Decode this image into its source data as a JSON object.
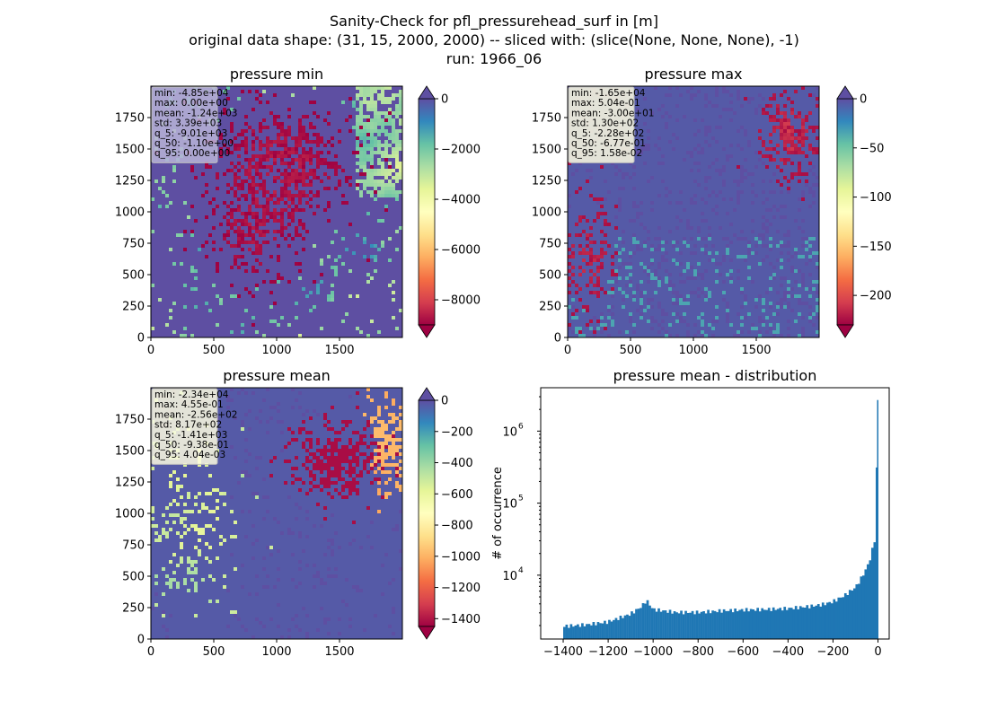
{
  "suptitle": {
    "line1": "Sanity-Check for pfl_pressurehead_surf in [m]",
    "line2": "original data shape: (31, 15, 2000, 2000) -- sliced with: (slice(None, None, None), -1)",
    "line3": "run: 1966_06"
  },
  "panels": [
    {
      "title": "pressure min",
      "cmap": "Spectral",
      "color_range": [
        -9000,
        0
      ],
      "colorbar_ticks": [
        "0",
        "−2000",
        "−4000",
        "−6000",
        "−8000"
      ],
      "colorbar_tick_values": [
        0,
        -2000,
        -4000,
        -6000,
        -8000
      ],
      "x_ticks": [
        "0",
        "500",
        "1000",
        "1500"
      ],
      "y_ticks": [
        "0",
        "250",
        "500",
        "750",
        "1000",
        "1250",
        "1500",
        "1750"
      ],
      "stats": [
        "min: -4.85e+04",
        "max: 0.00e+00",
        "mean: -1.24e+03",
        "std: 3.39e+03",
        "q_5: -9.01e+03",
        "q_50: -1.10e+00",
        "q_95: 0.00e+00"
      ],
      "stats_box_color": "#b8b4d8"
    },
    {
      "title": "pressure max",
      "cmap": "Spectral",
      "color_range": [
        -230,
        0
      ],
      "colorbar_ticks": [
        "0",
        "−50",
        "−100",
        "−150",
        "−200"
      ],
      "colorbar_tick_values": [
        0,
        -50,
        -100,
        -150,
        -200
      ],
      "x_ticks": [
        "0",
        "500",
        "1000",
        "1500"
      ],
      "y_ticks": [
        "0",
        "250",
        "500",
        "750",
        "1000",
        "1250",
        "1500",
        "1750"
      ],
      "stats": [
        "min: -1.65e+04",
        "max: 5.04e-01",
        "mean: -3.00e+01",
        "std: 1.30e+02",
        "q_5: -2.28e+02",
        "q_50: -6.77e-01",
        "q_95: 1.58e-02"
      ],
      "stats_box_color": "#fdfbe0"
    },
    {
      "title": "pressure mean",
      "cmap": "Spectral",
      "color_range": [
        -1450,
        0
      ],
      "colorbar_ticks": [
        "0",
        "−200",
        "−400",
        "−600",
        "−800",
        "−1000",
        "−1200",
        "−1400"
      ],
      "colorbar_tick_values": [
        0,
        -200,
        -400,
        -600,
        -800,
        -1000,
        -1200,
        -1400
      ],
      "x_ticks": [
        "0",
        "500",
        "1000",
        "1500"
      ],
      "y_ticks": [
        "0",
        "250",
        "500",
        "750",
        "1000",
        "1250",
        "1500",
        "1750"
      ],
      "stats": [
        "min: -2.34e+04",
        "max: 4.55e-01",
        "mean: -2.56e+02",
        "std: 8.17e+02",
        "q_5: -1.41e+03",
        "q_50: -9.38e-01",
        "q_95: 4.04e-03"
      ],
      "stats_box_color": "#fdfbe0"
    }
  ],
  "colors": {
    "spectral": [
      "#9e0142",
      "#d53e4f",
      "#f46d43",
      "#fdae61",
      "#fee08b",
      "#ffffbf",
      "#e6f598",
      "#abdda4",
      "#66c2a5",
      "#3288bd",
      "#5e4fa2"
    ],
    "histogram_bar": "#1f77b4"
  },
  "chart_data": [
    {
      "type": "heatmap",
      "title": "pressure min",
      "xlim": [
        0,
        2000
      ],
      "ylim": [
        0,
        2000
      ],
      "colorbar_range": [
        -9000,
        0
      ]
    },
    {
      "type": "heatmap",
      "title": "pressure max",
      "xlim": [
        0,
        2000
      ],
      "ylim": [
        0,
        2000
      ],
      "colorbar_range": [
        -230,
        0
      ]
    },
    {
      "type": "heatmap",
      "title": "pressure mean",
      "xlim": [
        0,
        2000
      ],
      "ylim": [
        0,
        2000
      ],
      "colorbar_range": [
        -1450,
        0
      ]
    },
    {
      "type": "bar",
      "title": "pressure mean - distribution",
      "ylabel": "# of occurrence",
      "xlabel": "",
      "yscale": "log",
      "xlim": [
        -1500,
        50
      ],
      "ylim": [
        1300,
        4000000
      ],
      "x_ticks": [
        "−1400",
        "−1200",
        "−1000",
        "−800",
        "−600",
        "−400",
        "−200",
        "0"
      ],
      "x_tick_values": [
        -1400,
        -1200,
        -1000,
        -800,
        -600,
        -400,
        -200,
        0
      ],
      "y_ticks": [
        "10",
        "10",
        "10"
      ],
      "y_tick_exponents": [
        "4",
        "5",
        "6"
      ],
      "y_tick_values": [
        10000,
        100000,
        1000000
      ],
      "x": [
        -1400,
        -1300,
        -1200,
        -1100,
        -1050,
        -1030,
        -1000,
        -900,
        -800,
        -700,
        -600,
        -500,
        -400,
        -300,
        -250,
        -200,
        -150,
        -100,
        -80,
        -60,
        -40,
        -30,
        -20,
        -10,
        0
      ],
      "values": [
        1950,
        2050,
        2250,
        2900,
        3700,
        4500,
        3350,
        3050,
        3050,
        3200,
        3300,
        3350,
        3450,
        3700,
        3900,
        4300,
        5200,
        6800,
        8500,
        11000,
        15000,
        19000,
        27000,
        34000,
        2700000
      ]
    }
  ]
}
